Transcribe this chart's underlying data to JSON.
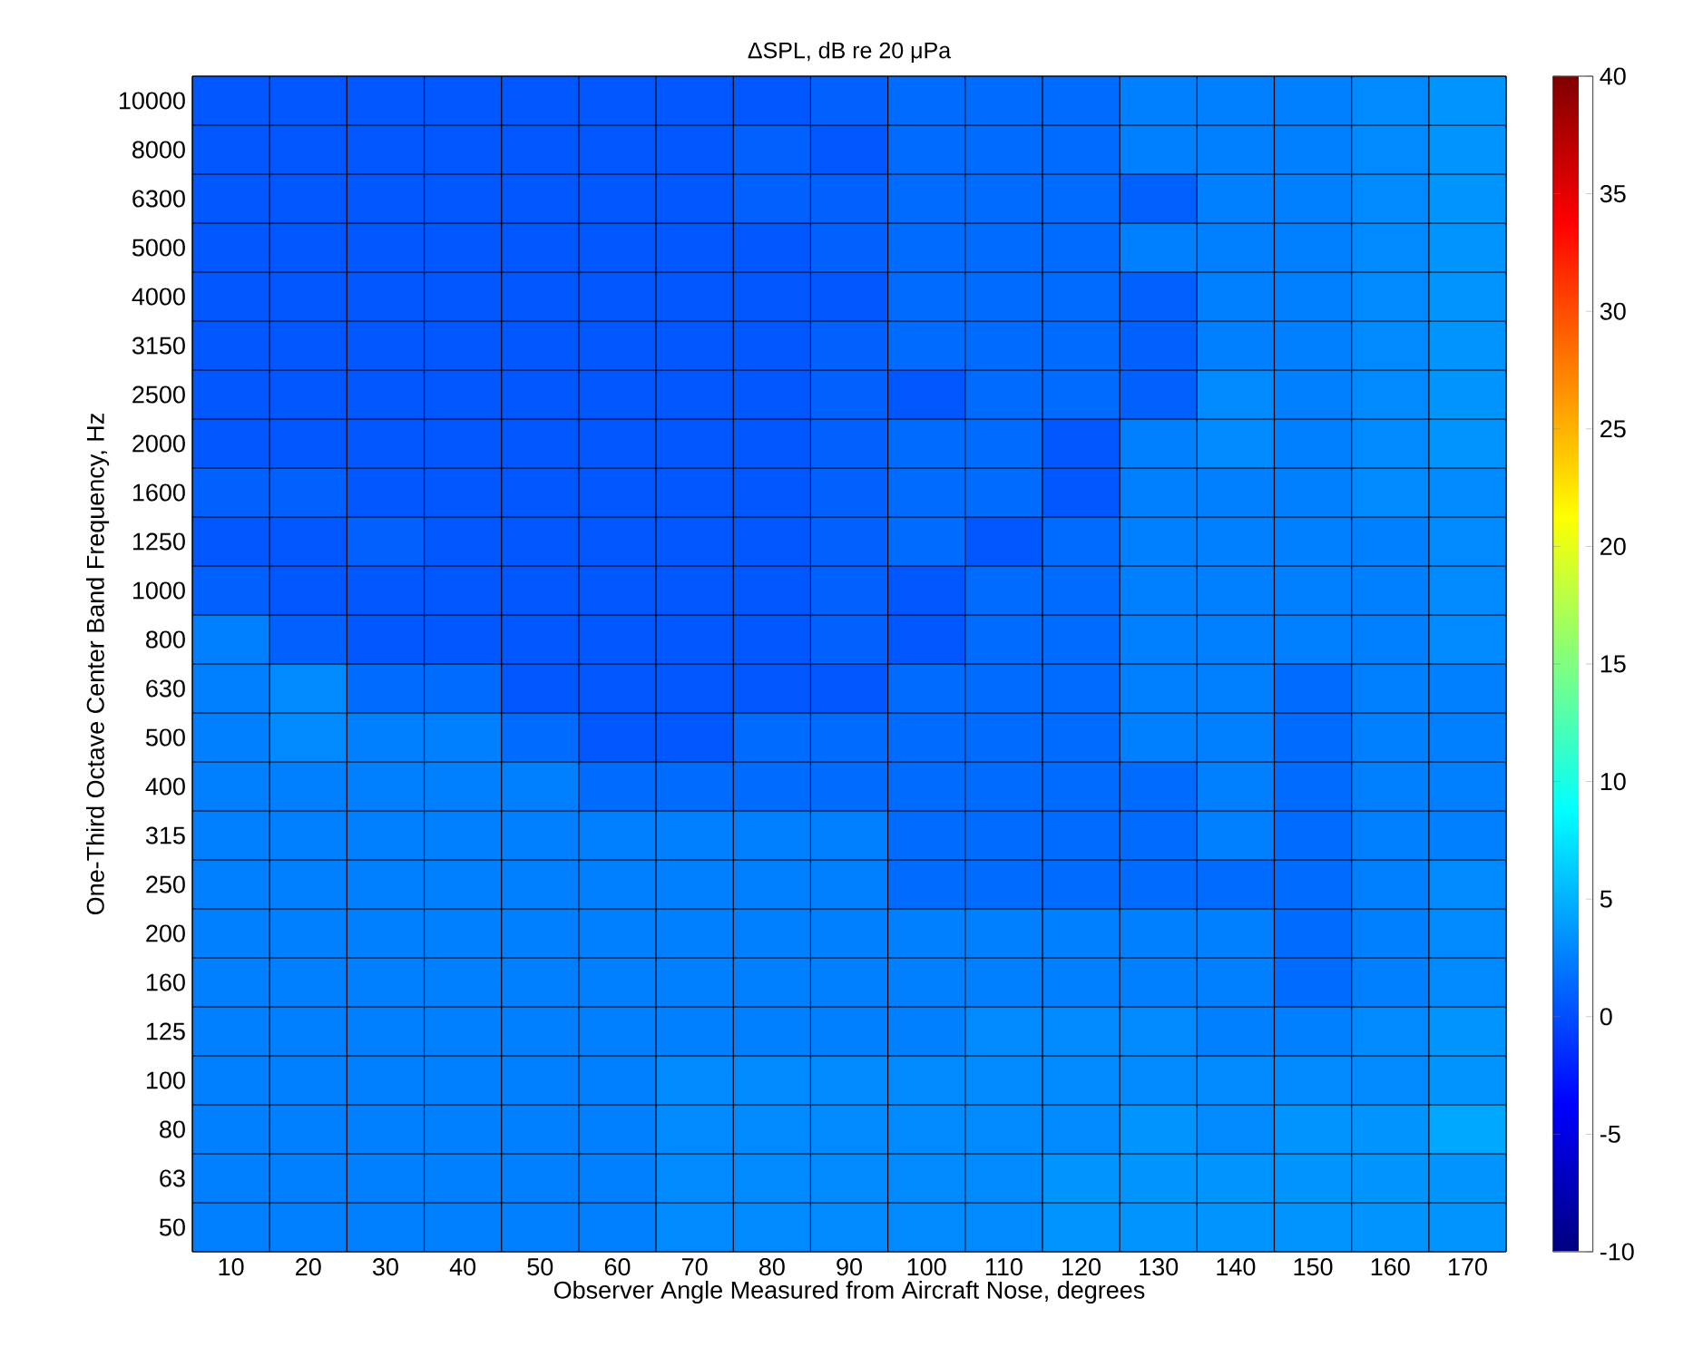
{
  "chart_data": {
    "type": "heatmap",
    "title": "ΔSPL, dB re 20 μPa",
    "xlabel": "Observer Angle Measured from Aircraft Nose, degrees",
    "ylabel": "One-Third Octave Center Band Frequency, Hz",
    "categories": [
      "10",
      "20",
      "30",
      "40",
      "50",
      "60",
      "70",
      "80",
      "90",
      "100",
      "110",
      "120",
      "130",
      "140",
      "150",
      "160",
      "170"
    ],
    "y_categories": [
      "10000",
      "8000",
      "6300",
      "5000",
      "4000",
      "3150",
      "2500",
      "2000",
      "1600",
      "1250",
      "1000",
      "800",
      "630",
      "500",
      "400",
      "315",
      "250",
      "200",
      "160",
      "125",
      "100",
      "80",
      "63",
      "50"
    ],
    "cells": [
      [
        0.5,
        0.5,
        0.5,
        0.5,
        0.5,
        0.5,
        0.5,
        0.5,
        1,
        1.5,
        1.5,
        1.5,
        2.5,
        2.5,
        2.5,
        3,
        3.5
      ],
      [
        0.5,
        0.5,
        0.5,
        0.5,
        0.5,
        0.5,
        0.5,
        1,
        0.5,
        1.5,
        1.5,
        1.5,
        2.5,
        2.5,
        2.5,
        3,
        3.5
      ],
      [
        0.5,
        0.5,
        0.5,
        0.5,
        0.5,
        0.5,
        0.5,
        1,
        1,
        1.5,
        1.5,
        1.5,
        1,
        2.5,
        2.5,
        3,
        3.5
      ],
      [
        0.5,
        0.5,
        0.5,
        0.5,
        0.5,
        0.5,
        0.5,
        0.5,
        1,
        1.5,
        1.5,
        1.5,
        2.5,
        2.5,
        2.5,
        3,
        3.5
      ],
      [
        0.5,
        0.5,
        0.5,
        0.5,
        0.5,
        0.5,
        0.5,
        0.5,
        0.5,
        1.5,
        1.5,
        1.5,
        1,
        2.5,
        2.5,
        3,
        3.5
      ],
      [
        0.5,
        0.5,
        0.5,
        0.5,
        0.5,
        0.5,
        0.5,
        0.5,
        1,
        1.5,
        1.5,
        1.5,
        1,
        2.5,
        2.5,
        3,
        3.5
      ],
      [
        0.5,
        0.5,
        0.5,
        0.5,
        0.5,
        0.5,
        0.5,
        0.5,
        1,
        0.5,
        1.5,
        1.5,
        1,
        3,
        2.5,
        3,
        3.5
      ],
      [
        0.5,
        0.5,
        0.5,
        0.5,
        0.5,
        0.5,
        0.5,
        0.5,
        1,
        1.5,
        1.5,
        0.5,
        2.5,
        3,
        2.5,
        3,
        3.5
      ],
      [
        1,
        1,
        0.5,
        0.5,
        0.5,
        0.5,
        0.5,
        0.5,
        1,
        1.5,
        1.5,
        0.5,
        2.5,
        2.5,
        2.5,
        3,
        3
      ],
      [
        0.5,
        0.5,
        1,
        0.5,
        0.5,
        0.5,
        0.5,
        0.5,
        1,
        1.5,
        0.5,
        1.5,
        2.5,
        2.5,
        2.5,
        2.5,
        3
      ],
      [
        1,
        0.5,
        0.5,
        0.5,
        0.5,
        0.5,
        0.5,
        0.5,
        1,
        0.5,
        1.5,
        1.5,
        2.5,
        2.5,
        2.5,
        2.5,
        3
      ],
      [
        2.5,
        1,
        0.5,
        0.5,
        0.5,
        0.5,
        0.5,
        0.5,
        1,
        0.5,
        1.5,
        1.5,
        2.5,
        2.5,
        2.5,
        2.5,
        3
      ],
      [
        2.5,
        3,
        1.5,
        1.5,
        0.5,
        0.5,
        0.5,
        0.5,
        0.5,
        1.5,
        1.5,
        1.5,
        2.5,
        2.5,
        1.5,
        2.5,
        2.5
      ],
      [
        2.5,
        3,
        2.5,
        2.5,
        1.5,
        0.5,
        0.5,
        1.5,
        1.5,
        1.5,
        1.5,
        1.5,
        2.5,
        2.5,
        1.5,
        2.5,
        2.5
      ],
      [
        2.5,
        2.5,
        2.5,
        2.5,
        2.5,
        1.5,
        1.5,
        1.5,
        1.5,
        1.5,
        1.5,
        1.5,
        1.5,
        2.5,
        1.5,
        2.5,
        2.5
      ],
      [
        2.5,
        2.5,
        2.5,
        2.5,
        2.5,
        2.5,
        2.5,
        2.5,
        2.5,
        1.5,
        1.5,
        1.5,
        1.5,
        2.5,
        1.5,
        2.5,
        2.5
      ],
      [
        2.5,
        2.5,
        2.5,
        2.5,
        2.5,
        2.5,
        2.5,
        2.5,
        2.5,
        1.5,
        1.5,
        1.5,
        1.5,
        1.5,
        1.5,
        2.5,
        3
      ],
      [
        2.5,
        2.5,
        2.5,
        2.5,
        2.5,
        2.5,
        2.5,
        2.5,
        2.5,
        2.5,
        2.5,
        2.5,
        2.5,
        2.5,
        1.5,
        2.5,
        3
      ],
      [
        2.5,
        2.5,
        2.5,
        2.5,
        2.5,
        2.5,
        2.5,
        2.5,
        2.5,
        2.5,
        2.5,
        2.5,
        2.5,
        2.5,
        1.5,
        2.5,
        3
      ],
      [
        2.5,
        2.5,
        2.5,
        2.5,
        2.5,
        2.5,
        2.5,
        2.5,
        2.5,
        2.5,
        3,
        3,
        3,
        2.5,
        2.5,
        3,
        3.5
      ],
      [
        2.5,
        2.5,
        2.5,
        2.5,
        2.5,
        2.5,
        3,
        3,
        3,
        3,
        3,
        3,
        3,
        3,
        3,
        3,
        3.5
      ],
      [
        2.5,
        2.5,
        2.5,
        2.5,
        2.5,
        2.5,
        3,
        3,
        3,
        3,
        3,
        3,
        3.5,
        3,
        3.5,
        3.5,
        4.5
      ],
      [
        2.5,
        2.5,
        2.5,
        2.5,
        2.5,
        2.5,
        3,
        3,
        3,
        3,
        3,
        3.5,
        3.5,
        3.5,
        3.5,
        3.5,
        3.5
      ],
      [
        2.5,
        2.5,
        2.5,
        2.5,
        2.5,
        2.5,
        3,
        3,
        3,
        3,
        3,
        3.5,
        3.5,
        3.5,
        3.5,
        3.5,
        3.5
      ]
    ],
    "grid": true,
    "clim": [
      -10,
      40
    ],
    "cticks": [
      -10,
      -5,
      0,
      5,
      10,
      15,
      20,
      25,
      30,
      35,
      40
    ]
  }
}
